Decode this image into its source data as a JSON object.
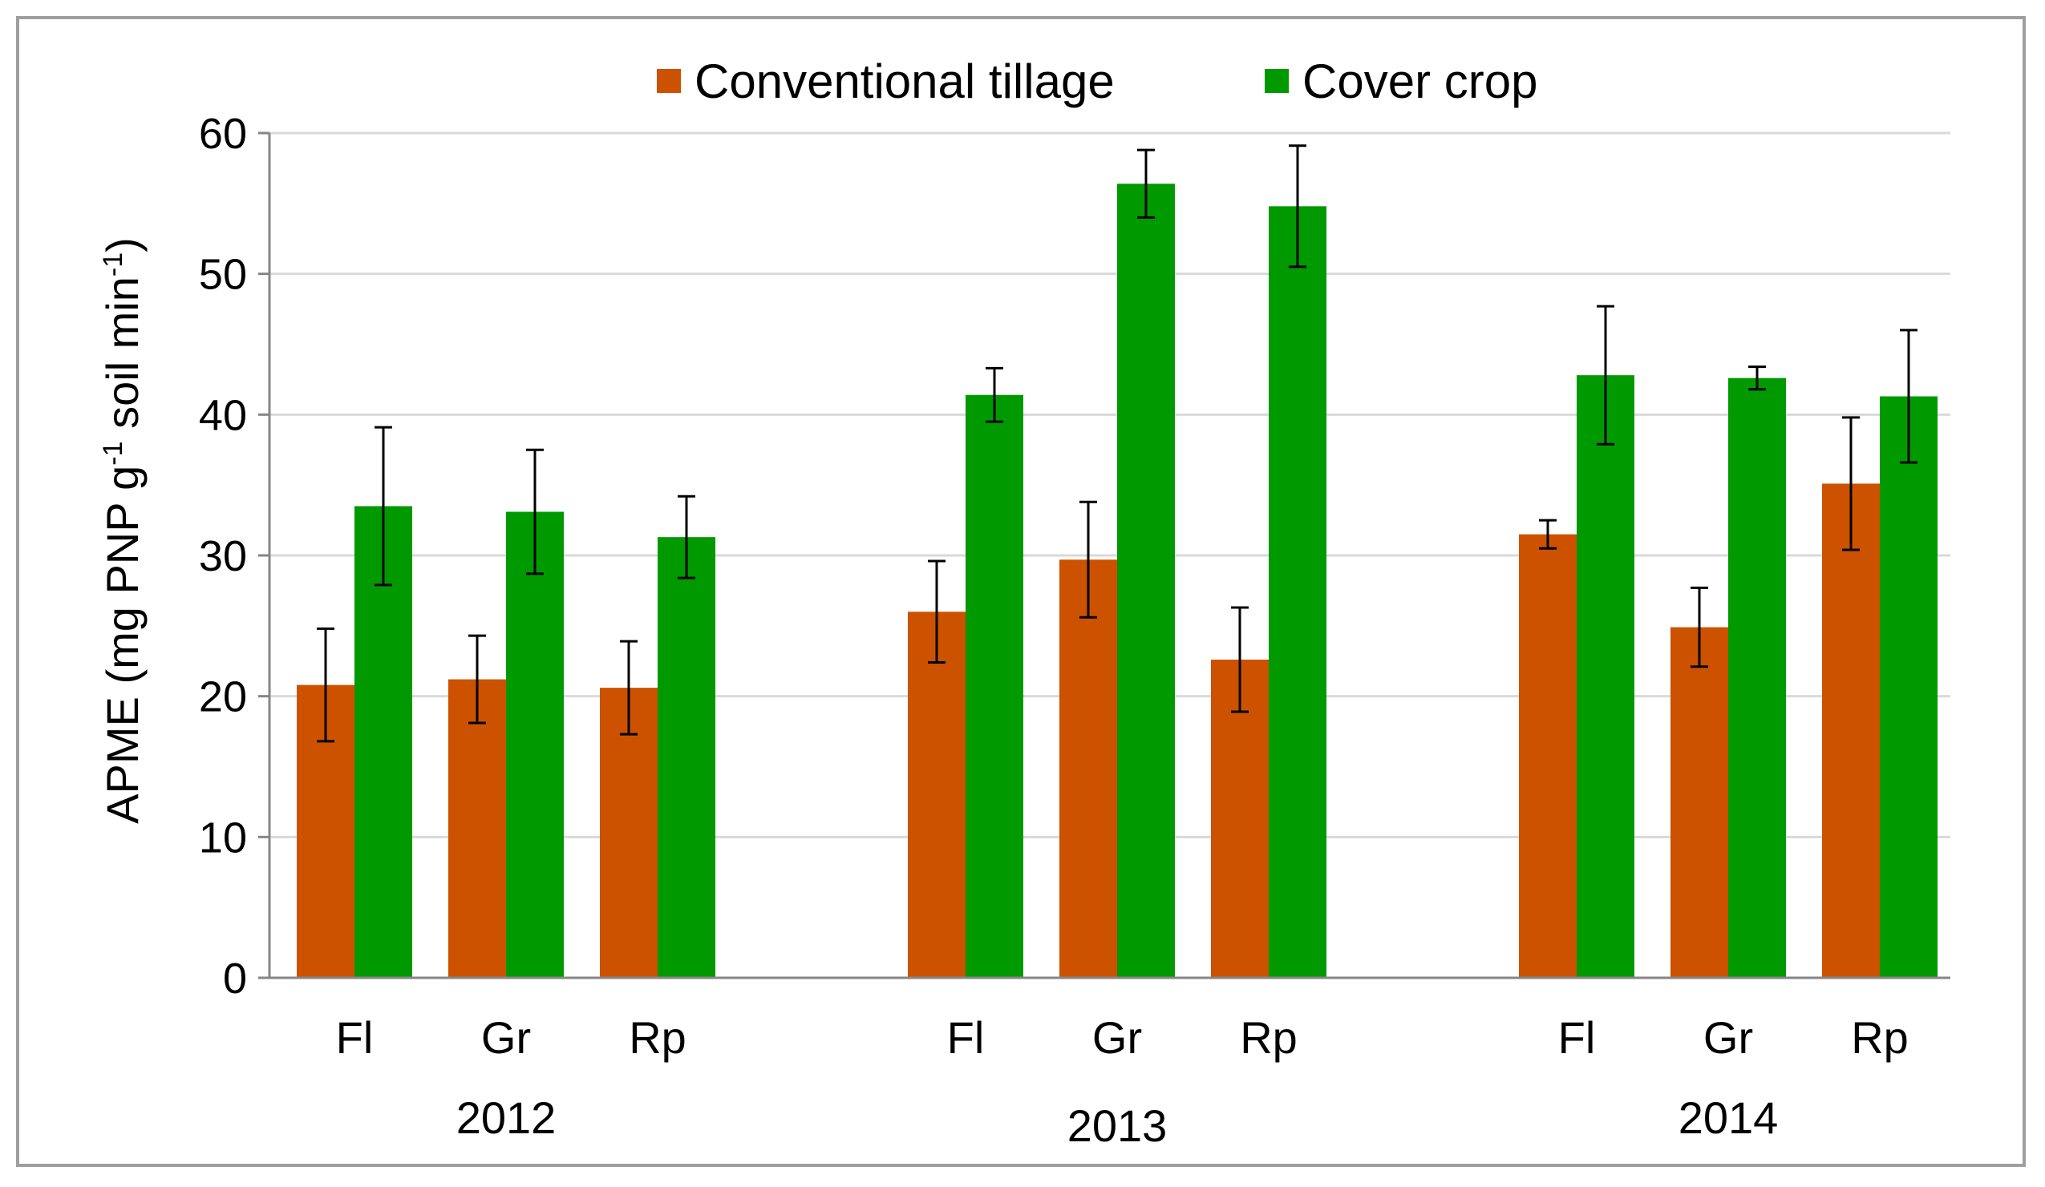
{
  "chart_data": {
    "type": "bar",
    "title": "",
    "ylabel_parts": [
      "APME (mg PNP g",
      "-1",
      " soil min",
      "-1",
      ")"
    ],
    "ylim": [
      0,
      60
    ],
    "yticks": [
      0,
      10,
      20,
      30,
      40,
      50,
      60
    ],
    "ytick_labels": [
      "0",
      "10",
      "20",
      "30",
      "40",
      "50",
      "60"
    ],
    "grid": true,
    "legend_position": "top-center",
    "groups": [
      {
        "label": "2012",
        "categories": [
          "Fl",
          "Gr",
          "Rp"
        ]
      },
      {
        "label": "2013",
        "categories": [
          "Fl",
          "Gr",
          "Rp"
        ]
      },
      {
        "label": "2014",
        "categories": [
          "Fl",
          "Gr",
          "Rp"
        ]
      }
    ],
    "series": [
      {
        "name": "Conventional tillage",
        "color": "#cc5200",
        "values": [
          20.8,
          21.2,
          20.6,
          26.0,
          29.7,
          22.6,
          31.5,
          24.9,
          35.1
        ],
        "errors": [
          4.0,
          3.1,
          3.3,
          3.6,
          4.1,
          3.7,
          1.0,
          2.8,
          4.7
        ]
      },
      {
        "name": "Cover crop",
        "color": "#009900",
        "values": [
          33.5,
          33.1,
          31.3,
          41.4,
          56.4,
          54.8,
          42.8,
          42.6,
          41.3
        ],
        "errors": [
          5.6,
          4.4,
          2.9,
          1.9,
          2.4,
          4.3,
          4.9,
          0.8,
          4.7
        ]
      }
    ]
  }
}
